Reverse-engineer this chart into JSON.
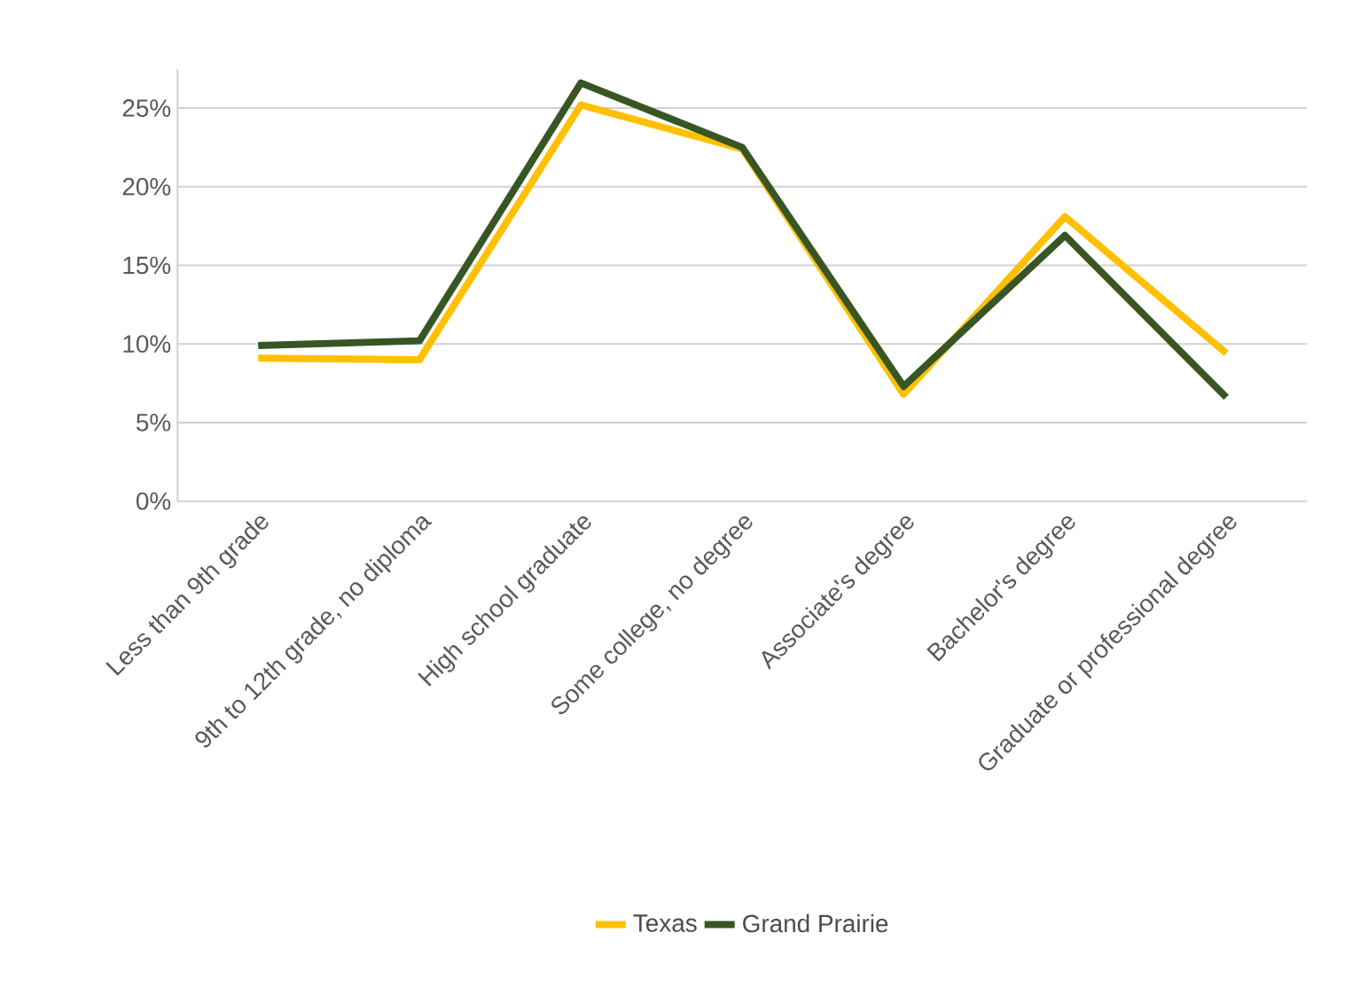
{
  "chart_data": {
    "type": "line",
    "categories": [
      "Less than 9th grade",
      "9th to 12th grade, no diploma",
      "High school graduate",
      "Some college, no degree",
      "Associate's degree",
      "Bachelor's degree",
      "Graduate or professional degree"
    ],
    "series": [
      {
        "name": "Texas",
        "color": "#ffc000",
        "values": [
          9.1,
          9.0,
          25.2,
          22.4,
          6.8,
          18.1,
          9.4
        ]
      },
      {
        "name": "Grand Prairie",
        "color": "#375623",
        "values": [
          9.9,
          10.2,
          26.6,
          22.5,
          7.3,
          16.9,
          6.6
        ]
      }
    ],
    "ylim": [
      0,
      27.5
    ],
    "yticks": [
      {
        "value": 0,
        "label": "0%"
      },
      {
        "value": 5,
        "label": "5%"
      },
      {
        "value": 10,
        "label": "10%"
      },
      {
        "value": 15,
        "label": "15%"
      },
      {
        "value": 20,
        "label": "20%"
      },
      {
        "value": 25,
        "label": "25%"
      }
    ],
    "grid": "y",
    "legend": "bottom",
    "marker": "none",
    "line_style": "solid"
  }
}
